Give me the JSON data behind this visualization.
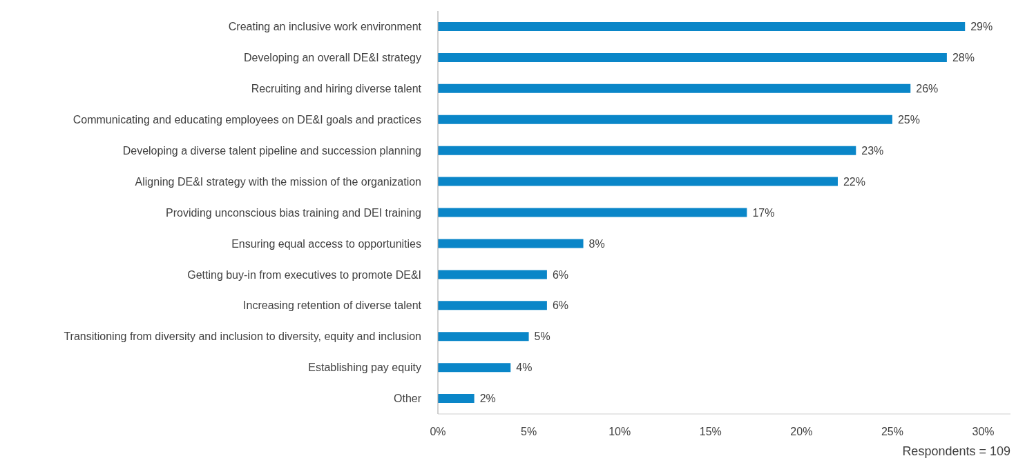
{
  "chart_data": {
    "type": "bar",
    "orientation": "horizontal",
    "categories": [
      "Creating an inclusive work environment",
      "Developing an overall DE&I strategy",
      "Recruiting and hiring diverse talent",
      "Communicating and educating employees on DE&I goals and practices",
      "Developing a diverse talent pipeline and succession planning",
      "Aligning DE&I strategy with the mission of the organization",
      "Providing unconscious bias training and DEI training",
      "Ensuring equal access to opportunities",
      "Getting buy-in from executives to promote DE&I",
      "Increasing retention of diverse talent",
      "Transitioning from diversity and inclusion to diversity, equity and inclusion",
      "Establishing pay equity",
      "Other"
    ],
    "values": [
      29,
      28,
      26,
      25,
      23,
      22,
      17,
      8,
      6,
      6,
      5,
      4,
      2
    ],
    "value_labels": [
      "29%",
      "28%",
      "26%",
      "25%",
      "23%",
      "22%",
      "17%",
      "8%",
      "6%",
      "6%",
      "5%",
      "4%",
      "2%"
    ],
    "color": "#0a86c8",
    "xlim": [
      0,
      31.5
    ],
    "xticks": [
      {
        "value": 0,
        "label": "0%"
      },
      {
        "value": 5,
        "label": "5%"
      },
      {
        "value": 10,
        "label": "10%"
      },
      {
        "value": 15,
        "label": "15%"
      },
      {
        "value": 20,
        "label": "20%"
      },
      {
        "value": 25,
        "label": "25%"
      },
      {
        "value": 30,
        "label": "30%"
      }
    ],
    "grid": false,
    "legend": false,
    "annotations": [
      "Respondents = 109"
    ]
  }
}
